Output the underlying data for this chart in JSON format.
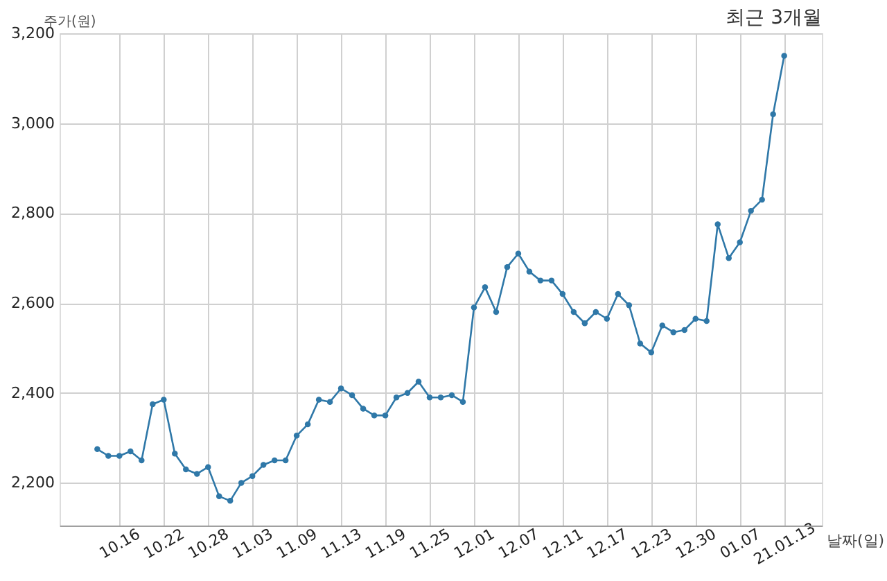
{
  "chart_data": {
    "type": "line",
    "title": "최근 3개월",
    "xlabel": "날짜(일)",
    "ylabel": "주가(원)",
    "categories": [
      null,
      null,
      "10.16",
      null,
      null,
      null,
      "10.22",
      null,
      null,
      null,
      "10.28",
      null,
      null,
      null,
      "11.03",
      null,
      null,
      null,
      "11.09",
      null,
      null,
      null,
      "11.13",
      null,
      null,
      null,
      "11.19",
      null,
      null,
      null,
      "11.25",
      null,
      null,
      null,
      "12.01",
      null,
      null,
      null,
      "12.07",
      null,
      null,
      null,
      "12.11",
      null,
      null,
      null,
      "12.17",
      null,
      null,
      null,
      "12.23",
      null,
      null,
      null,
      "12.30",
      null,
      null,
      null,
      "01.07",
      null,
      null,
      null,
      "21.01.13"
    ],
    "values": [
      2275,
      2260,
      2260,
      2270,
      2250,
      2375,
      2385,
      2265,
      2230,
      2220,
      2235,
      2170,
      2160,
      2200,
      2215,
      2240,
      2250,
      2250,
      2305,
      2330,
      2385,
      2380,
      2410,
      2395,
      2365,
      2350,
      2350,
      2390,
      2400,
      2425,
      2390,
      2390,
      2395,
      2380,
      2590,
      2635,
      2580,
      2680,
      2710,
      2670,
      2650,
      2650,
      2620,
      2580,
      2555,
      2580,
      2565,
      2620,
      2595,
      2510,
      2490,
      2550,
      2535,
      2540,
      2565,
      2560,
      2775,
      2700,
      2735,
      2805,
      2830,
      3020,
      3150
    ],
    "color": "#2f78a8",
    "ylim": [
      2105,
      3200
    ],
    "yticks": [
      {
        "value": 2200,
        "label": "2,200"
      },
      {
        "value": 2400,
        "label": "2,400"
      },
      {
        "value": 2600,
        "label": "2,600"
      },
      {
        "value": 2800,
        "label": "2,800"
      },
      {
        "value": 3000,
        "label": "3,000"
      },
      {
        "value": 3200,
        "label": "3,200"
      }
    ],
    "grid": true,
    "marker": "circle",
    "line_style": "solid"
  }
}
